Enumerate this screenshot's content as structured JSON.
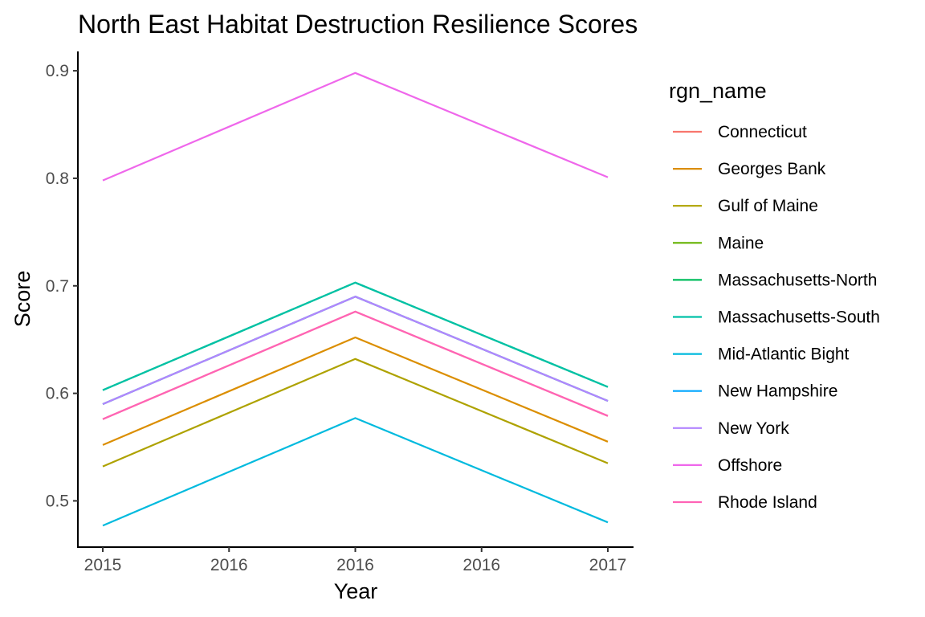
{
  "chart_data": {
    "type": "line",
    "title": "North East Habitat Destruction Resilience Scores",
    "xlabel": "Year",
    "ylabel": "Score",
    "x": [
      2015,
      2016,
      2017
    ],
    "x_tick_labels": [
      "2015",
      "2016",
      "2016",
      "2016",
      "2017"
    ],
    "y_ticks": [
      0.5,
      0.6,
      0.7,
      0.8,
      0.9
    ],
    "y_tick_labels": [
      "0.5",
      "0.6",
      "0.7",
      "0.8",
      "0.9"
    ],
    "ylim": [
      0.457,
      0.918
    ],
    "grid": false,
    "legend": {
      "title": "rgn_name",
      "placement": "right"
    },
    "series": [
      {
        "name": "Connecticut",
        "color": "#F8766D",
        "values": [
          0.576,
          0.676,
          0.579
        ]
      },
      {
        "name": "Georges Bank",
        "color": "#DB8E00",
        "values": [
          0.552,
          0.652,
          0.555
        ]
      },
      {
        "name": "Gulf of Maine",
        "color": "#AEA200",
        "values": [
          0.532,
          0.632,
          0.535
        ]
      },
      {
        "name": "Maine",
        "color": "#64B200",
        "values": [
          0.59,
          0.69,
          0.593
        ]
      },
      {
        "name": "Massachusetts-North",
        "color": "#00BD5C",
        "values": [
          0.603,
          0.703,
          0.606
        ]
      },
      {
        "name": "Massachusetts-South",
        "color": "#00C1A7",
        "values": [
          0.603,
          0.703,
          0.606
        ]
      },
      {
        "name": "Mid-Atlantic Bight",
        "color": "#00BADE",
        "values": [
          0.477,
          0.577,
          0.48
        ]
      },
      {
        "name": "New Hampshire",
        "color": "#00A6FF",
        "values": [
          0.59,
          0.69,
          0.593
        ]
      },
      {
        "name": "New York",
        "color": "#B385FF",
        "values": [
          0.59,
          0.69,
          0.593
        ]
      },
      {
        "name": "Offshore",
        "color": "#EF67EB",
        "values": [
          0.798,
          0.898,
          0.801
        ]
      },
      {
        "name": "Rhode Island",
        "color": "#FF63B6",
        "values": [
          0.576,
          0.676,
          0.579
        ]
      }
    ]
  }
}
